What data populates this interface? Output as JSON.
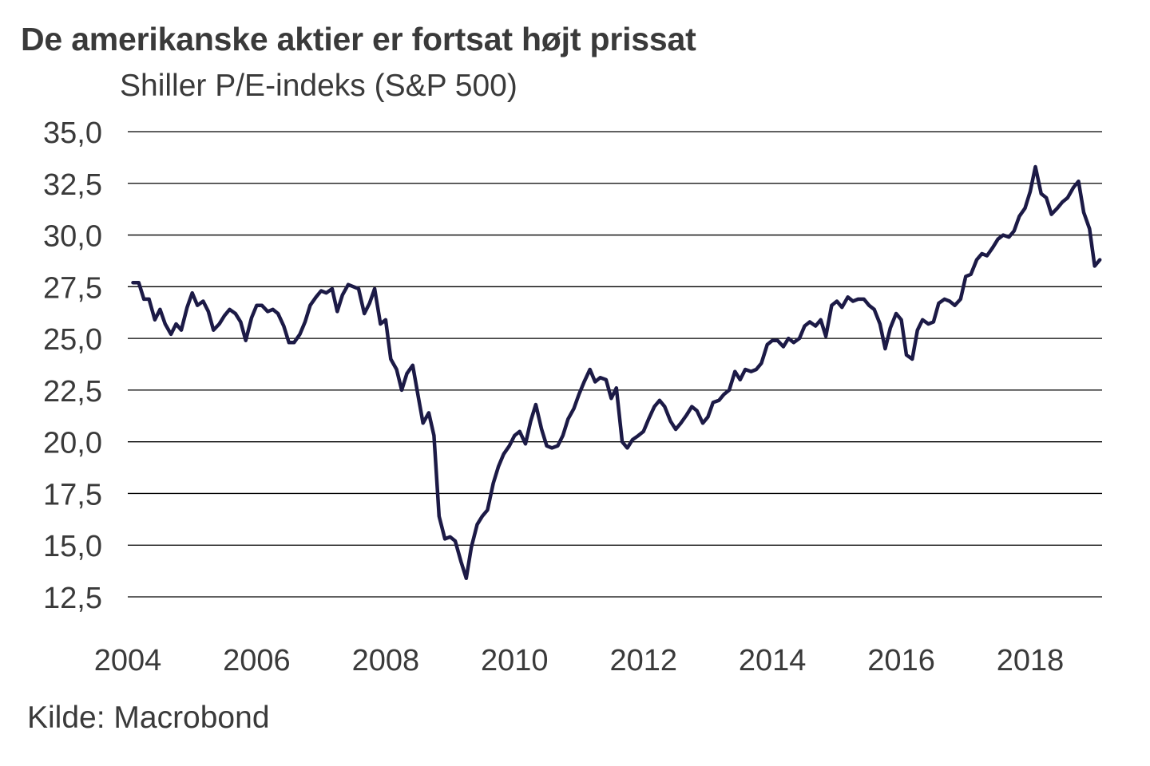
{
  "chart_data": {
    "type": "line",
    "title": "De amerikanske aktier er fortsat højt prissat",
    "subtitle": "Shiller P/E-indeks (S&P 500)",
    "source": "Kilde: Macrobond",
    "xlabel": "",
    "ylabel": "",
    "xlim": [
      2004,
      2019.1
    ],
    "ylim": [
      12.5,
      35.0
    ],
    "yticks": [
      "35,0",
      "32,5",
      "30,0",
      "27,5",
      "25,0",
      "22,5",
      "20,0",
      "17,5",
      "15,0",
      "12,5"
    ],
    "xticks": [
      "2004",
      "2006",
      "2008",
      "2010",
      "2012",
      "2014",
      "2016",
      "2018"
    ],
    "grid": "horizontal",
    "legend": "none",
    "line_color": "#1c1a46",
    "series": [
      {
        "x": [
          2004.08,
          2004.17,
          2004.25,
          2004.33,
          2004.42,
          2004.5,
          2004.58,
          2004.67,
          2004.75,
          2004.83,
          2004.92,
          2005.0,
          2005.08,
          2005.17,
          2005.25,
          2005.33,
          2005.42,
          2005.5,
          2005.58,
          2005.67,
          2005.75,
          2005.83,
          2005.92,
          2006.0,
          2006.08,
          2006.17,
          2006.25,
          2006.33,
          2006.42,
          2006.5,
          2006.58,
          2006.67,
          2006.75,
          2006.83,
          2006.92,
          2007.0,
          2007.08,
          2007.17,
          2007.25,
          2007.33,
          2007.42,
          2007.5,
          2007.58,
          2007.67,
          2007.75,
          2007.83,
          2007.92,
          2008.0,
          2008.08,
          2008.17,
          2008.25,
          2008.33,
          2008.42,
          2008.5,
          2008.58,
          2008.67,
          2008.75,
          2008.83,
          2008.92,
          2009.0,
          2009.08,
          2009.17,
          2009.25,
          2009.33,
          2009.42,
          2009.5,
          2009.58,
          2009.67,
          2009.75,
          2009.83,
          2009.92,
          2010.0,
          2010.08,
          2010.17,
          2010.25,
          2010.33,
          2010.42,
          2010.5,
          2010.58,
          2010.67,
          2010.75,
          2010.83,
          2010.92,
          2011.0,
          2011.08,
          2011.17,
          2011.25,
          2011.33,
          2011.42,
          2011.5,
          2011.58,
          2011.67,
          2011.75,
          2011.83,
          2011.92,
          2012.0,
          2012.08,
          2012.17,
          2012.25,
          2012.33,
          2012.42,
          2012.5,
          2012.58,
          2012.67,
          2012.75,
          2012.83,
          2012.92,
          2013.0,
          2013.08,
          2013.17,
          2013.25,
          2013.33,
          2013.42,
          2013.5,
          2013.58,
          2013.67,
          2013.75,
          2013.83,
          2013.92,
          2014.0,
          2014.08,
          2014.17,
          2014.25,
          2014.33,
          2014.42,
          2014.5,
          2014.58,
          2014.67,
          2014.75,
          2014.83,
          2014.92,
          2015.0,
          2015.08,
          2015.17,
          2015.25,
          2015.33,
          2015.42,
          2015.5,
          2015.58,
          2015.67,
          2015.75,
          2015.83,
          2015.92,
          2016.0,
          2016.08,
          2016.17,
          2016.25,
          2016.33,
          2016.42,
          2016.5,
          2016.58,
          2016.67,
          2016.75,
          2016.83,
          2016.92,
          2017.0,
          2017.08,
          2017.17,
          2017.25,
          2017.33,
          2017.42,
          2017.5,
          2017.58,
          2017.67,
          2017.75,
          2017.83,
          2017.92,
          2018.0,
          2018.08,
          2018.17,
          2018.25,
          2018.33,
          2018.42,
          2018.5,
          2018.58,
          2018.67,
          2018.75,
          2018.83,
          2018.92,
          2019.0,
          2019.08
        ],
        "values": [
          27.7,
          27.7,
          26.9,
          26.9,
          25.9,
          26.4,
          25.7,
          25.2,
          25.7,
          25.4,
          26.5,
          27.2,
          26.6,
          26.8,
          26.3,
          25.4,
          25.7,
          26.1,
          26.4,
          26.2,
          25.8,
          24.9,
          26.0,
          26.6,
          26.6,
          26.3,
          26.4,
          26.2,
          25.6,
          24.8,
          24.8,
          25.2,
          25.8,
          26.6,
          27.0,
          27.3,
          27.2,
          27.4,
          26.3,
          27.1,
          27.6,
          27.5,
          27.4,
          26.2,
          26.7,
          27.4,
          25.7,
          25.9,
          24.0,
          23.5,
          22.5,
          23.3,
          23.7,
          22.3,
          20.9,
          21.4,
          20.3,
          16.4,
          15.3,
          15.4,
          15.2,
          14.2,
          13.4,
          14.9,
          16.0,
          16.4,
          16.7,
          18.0,
          18.8,
          19.4,
          19.8,
          20.3,
          20.5,
          19.9,
          21.0,
          21.8,
          20.6,
          19.8,
          19.7,
          19.8,
          20.3,
          21.1,
          21.6,
          22.3,
          22.9,
          23.5,
          22.9,
          23.1,
          23.0,
          22.1,
          22.6,
          20.0,
          19.7,
          20.1,
          20.3,
          20.5,
          21.1,
          21.7,
          22.0,
          21.7,
          21.0,
          20.6,
          20.9,
          21.3,
          21.7,
          21.5,
          20.9,
          21.2,
          21.9,
          22.0,
          22.3,
          22.5,
          23.4,
          23.0,
          23.5,
          23.4,
          23.5,
          23.8,
          24.7,
          24.9,
          24.9,
          24.6,
          25.0,
          24.8,
          25.0,
          25.6,
          25.8,
          25.6,
          25.9,
          25.1,
          26.6,
          26.8,
          26.5,
          27.0,
          26.8,
          26.9,
          26.9,
          26.6,
          26.4,
          25.7,
          24.5,
          25.5,
          26.2,
          25.9,
          24.2,
          24.0,
          25.4,
          25.9,
          25.7,
          25.8,
          26.7,
          26.9,
          26.8,
          26.6,
          26.9,
          28.0,
          28.1,
          28.8,
          29.1,
          29.0,
          29.4,
          29.8,
          30.0,
          29.9,
          30.2,
          30.9,
          31.3,
          32.1,
          33.3,
          32.0,
          31.8,
          31.0,
          31.3,
          31.6,
          31.8,
          32.3,
          32.6,
          31.1,
          30.3,
          28.5,
          28.8
        ]
      }
    ]
  }
}
